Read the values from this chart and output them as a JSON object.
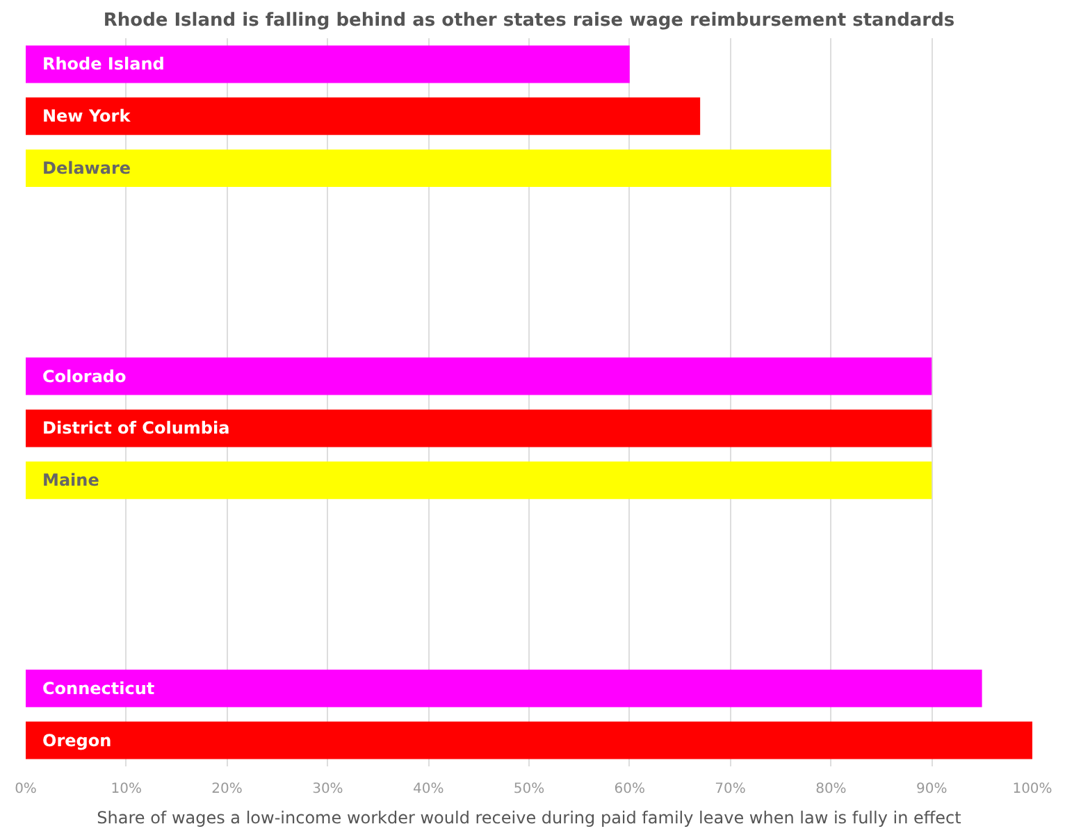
{
  "chart_data": {
    "type": "bar",
    "orientation": "horizontal",
    "title": "Rhode Island is falling behind as other states raise wage reimbursement standards",
    "xlabel": "Share of wages a low-income workder would receive during paid family leave when law is fully in effect",
    "categories": [
      "Rhode Island",
      "New York",
      "Delaware",
      null,
      null,
      null,
      "Colorado",
      "District of Columbia",
      "Maine",
      null,
      null,
      null,
      "Connecticut",
      "Oregon"
    ],
    "values": [
      60,
      67,
      80,
      null,
      null,
      null,
      90,
      90,
      90,
      null,
      null,
      null,
      95,
      100
    ],
    "colors": [
      "#ff00ff",
      "#ff0000",
      "#ffff00",
      null,
      null,
      null,
      "#ff00ff",
      "#ff0000",
      "#ffff00",
      null,
      null,
      null,
      "#ff00ff",
      "#ff0000"
    ],
    "xlim": [
      0,
      100
    ],
    "xticks": [
      {
        "value": 0,
        "label": "0%"
      },
      {
        "value": 10,
        "label": "10%"
      },
      {
        "value": 20,
        "label": "20%"
      },
      {
        "value": 30,
        "label": "30%"
      },
      {
        "value": 40,
        "label": "40%"
      },
      {
        "value": 50,
        "label": "50%"
      },
      {
        "value": 60,
        "label": "60%"
      },
      {
        "value": 70,
        "label": "70%"
      },
      {
        "value": 80,
        "label": "80%"
      },
      {
        "value": 90,
        "label": "90%"
      },
      {
        "value": 100,
        "label": "100%"
      }
    ],
    "grid": "x"
  }
}
